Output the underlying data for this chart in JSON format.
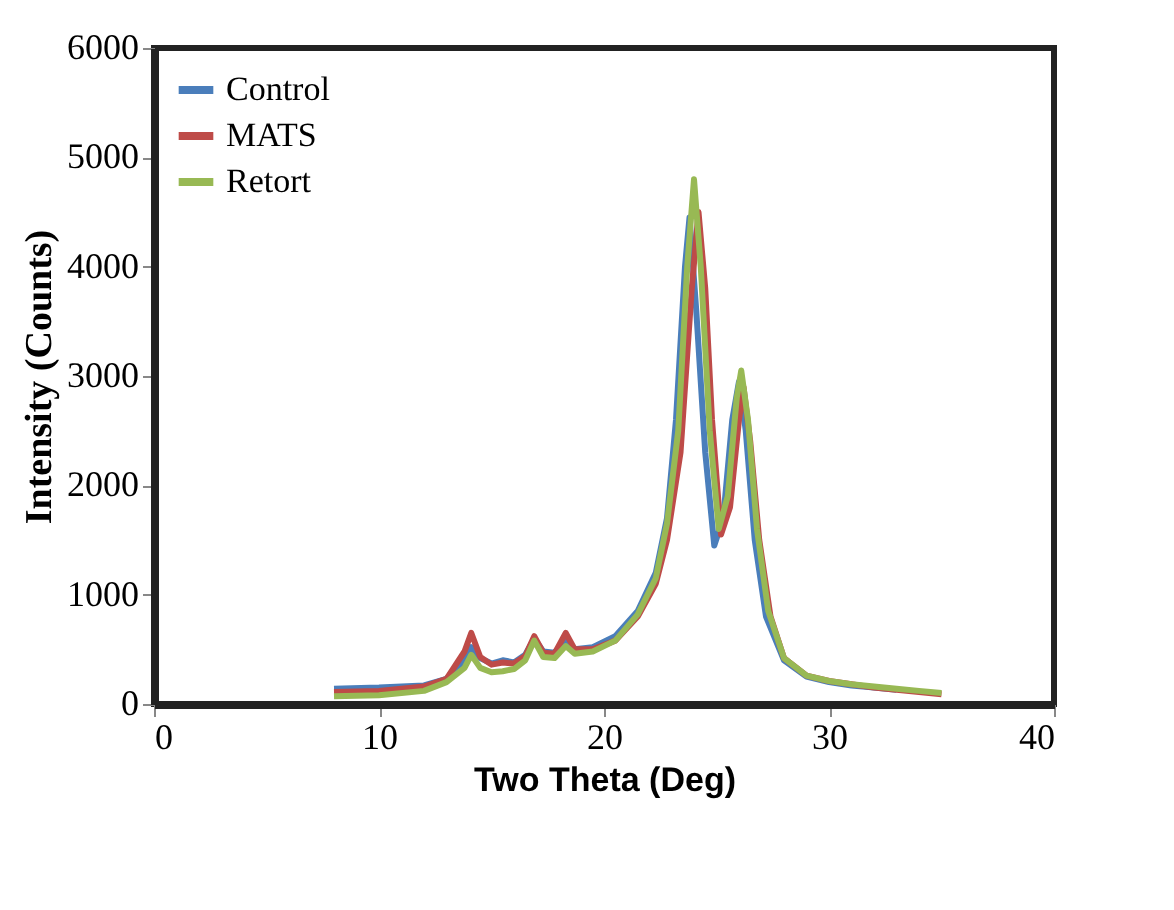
{
  "chart_data": {
    "type": "line",
    "xlabel": "Two Theta (Deg)",
    "ylabel": "Intensity (Counts)",
    "xlim": [
      0,
      40
    ],
    "xticks": [
      0,
      10,
      20,
      30,
      40
    ],
    "ylim": [
      0,
      6000
    ],
    "yticks": [
      0,
      1000,
      2000,
      3000,
      4000,
      5000,
      6000
    ],
    "grid": false,
    "legend": "top left",
    "marker": "none",
    "line_style": "solid",
    "series": [
      {
        "name": "Control",
        "color": "#4a7ebb",
        "x": [
          8,
          10,
          12,
          13,
          13.8,
          14.1,
          14.5,
          15,
          15.5,
          16,
          16.5,
          16.9,
          17.3,
          17.8,
          18.3,
          18.7,
          19.5,
          20.5,
          21.5,
          22.3,
          22.8,
          23.2,
          23.6,
          23.8,
          24.1,
          24.5,
          24.9,
          25.3,
          25.7,
          26,
          26.3,
          26.7,
          27.2,
          28,
          29,
          30,
          31,
          32,
          33
        ],
        "values": [
          140,
          150,
          170,
          230,
          400,
          520,
          420,
          370,
          400,
          380,
          450,
          600,
          480,
          470,
          580,
          500,
          520,
          620,
          850,
          1200,
          1700,
          2600,
          4000,
          4450,
          3600,
          2300,
          1450,
          1700,
          2600,
          2950,
          2500,
          1500,
          800,
          400,
          250,
          200,
          170,
          150,
          130
        ]
      },
      {
        "name": "MATS",
        "color": "#be4b48",
        "x": [
          8,
          10,
          12,
          13,
          13.8,
          14.1,
          14.5,
          15,
          15.5,
          16,
          16.5,
          16.9,
          17.3,
          17.8,
          18.3,
          18.7,
          19.5,
          20.5,
          21.5,
          22.3,
          22.8,
          23.4,
          23.9,
          24.2,
          24.5,
          24.8,
          25.2,
          25.6,
          26,
          26.2,
          26.5,
          26.9,
          27.4,
          28,
          29,
          30,
          31,
          32,
          33,
          34,
          35
        ],
        "values": [
          110,
          120,
          160,
          230,
          480,
          650,
          430,
          360,
          380,
          370,
          440,
          620,
          470,
          460,
          650,
          500,
          500,
          580,
          800,
          1100,
          1500,
          2300,
          3800,
          4500,
          3800,
          2600,
          1550,
          1800,
          2600,
          2900,
          2400,
          1500,
          800,
          420,
          260,
          210,
          180,
          150,
          130,
          110,
          90
        ]
      },
      {
        "name": "Retort",
        "color": "#98b954",
        "x": [
          8,
          10,
          12,
          13,
          13.8,
          14.1,
          14.5,
          15,
          15.5,
          16,
          16.5,
          16.9,
          17.3,
          17.8,
          18.3,
          18.7,
          19.5,
          20.5,
          21.5,
          22.3,
          22.8,
          23.3,
          23.7,
          24,
          24.3,
          24.7,
          25.1,
          25.5,
          25.9,
          26.1,
          26.4,
          26.8,
          27.3,
          28,
          29,
          30,
          31,
          32,
          33,
          34,
          35
        ],
        "values": [
          70,
          80,
          120,
          200,
          330,
          450,
          330,
          290,
          300,
          320,
          400,
          580,
          430,
          420,
          530,
          460,
          480,
          580,
          820,
          1150,
          1650,
          2500,
          4000,
          4800,
          4000,
          2500,
          1600,
          1900,
          2800,
          3050,
          2600,
          1600,
          850,
          420,
          260,
          210,
          180,
          160,
          140,
          120,
          100
        ]
      }
    ]
  }
}
